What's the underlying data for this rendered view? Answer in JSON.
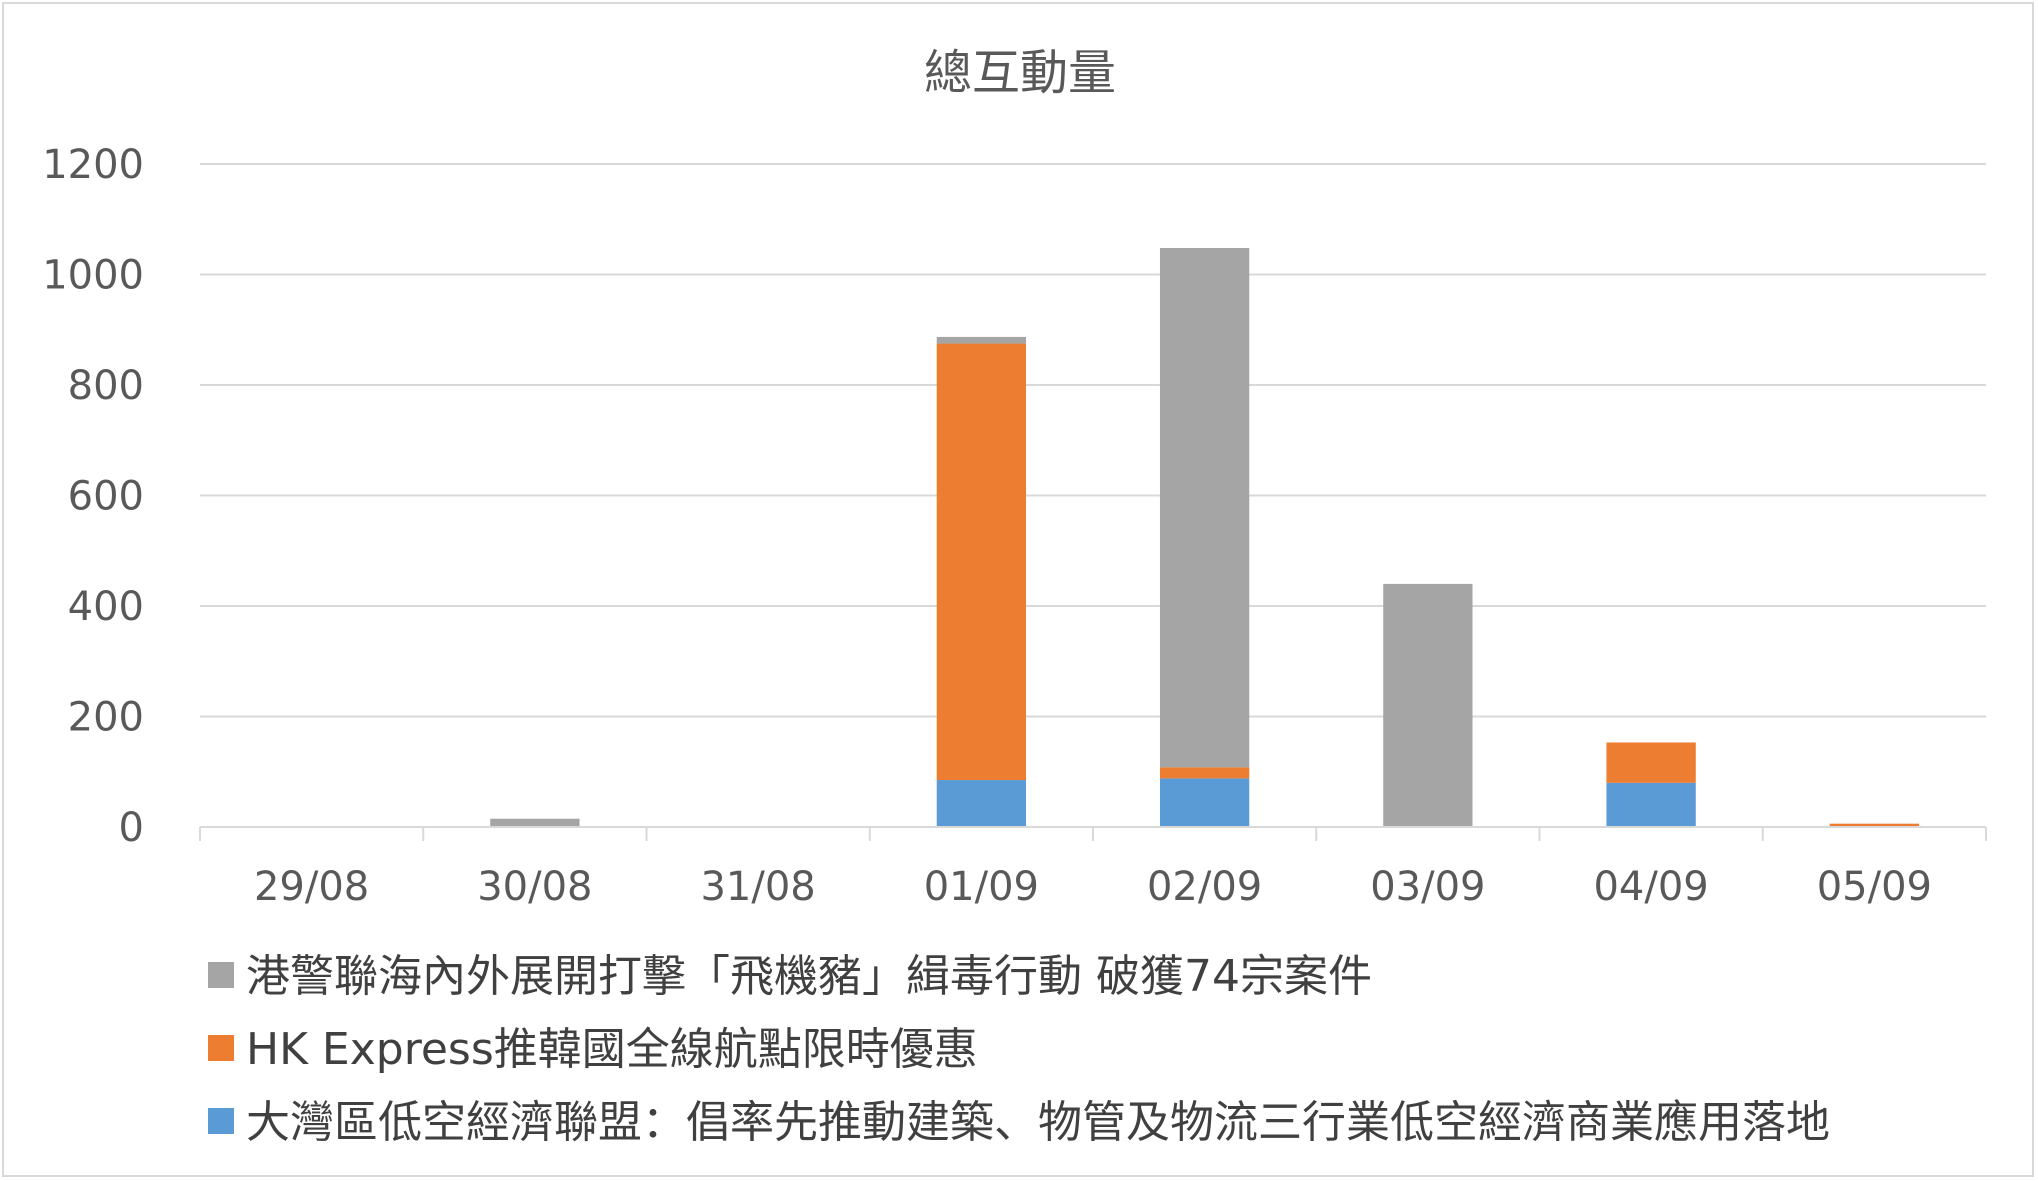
{
  "chart_data": {
    "type": "bar",
    "stacked": true,
    "title": "總互動量",
    "xlabel": "",
    "ylabel": "",
    "categories": [
      "29/08",
      "30/08",
      "31/08",
      "01/09",
      "02/09",
      "03/09",
      "04/09",
      "05/09"
    ],
    "ylim": [
      0,
      1200
    ],
    "yticks": [
      0,
      200,
      400,
      600,
      800,
      1000,
      1200
    ],
    "grid": true,
    "legend_position": "bottom",
    "series": [
      {
        "name": "大灣區低空經濟聯盟：倡率先推動建築、物管及物流三行業低空經濟商業應用落地",
        "color": "#5b9bd5",
        "values": [
          0,
          0,
          0,
          85,
          88,
          0,
          80,
          0
        ]
      },
      {
        "name": "HK Express推韓國全線航點限時優惠",
        "color": "#ed7d31",
        "values": [
          0,
          0,
          0,
          790,
          20,
          0,
          73,
          6
        ]
      },
      {
        "name": "港警聯海內外展開打擊「飛機豬」緝毒行動 破獲74宗案件",
        "color": "#a5a5a5",
        "values": [
          0,
          15,
          0,
          12,
          940,
          440,
          0,
          0
        ]
      }
    ],
    "legend_order": [
      2,
      1,
      0
    ]
  }
}
